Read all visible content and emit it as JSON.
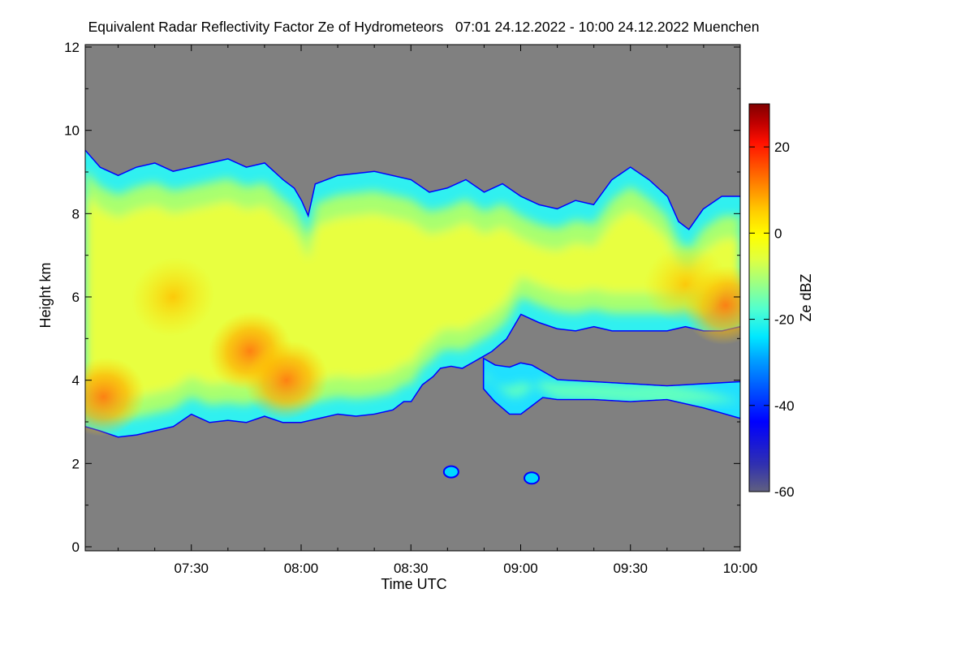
{
  "chart_data": {
    "type": "heatmap",
    "title": "Equivalent Radar Reflectivity Factor Ze of Hydrometeors   07:01 24.12.2022 - 10:00 24.12.2022 Muenchen",
    "xlabel": "Time UTC",
    "ylabel": "Height km",
    "x_range": [
      "07:01",
      "10:00"
    ],
    "y_range": [
      0,
      12
    ],
    "x_ticks": [
      {
        "label": "07:30",
        "minutes": 450
      },
      {
        "label": "08:00",
        "minutes": 480
      },
      {
        "label": "08:30",
        "minutes": 510
      },
      {
        "label": "09:00",
        "minutes": 540
      },
      {
        "label": "09:30",
        "minutes": 570
      },
      {
        "label": "10:00",
        "minutes": 600
      }
    ],
    "x_min_minutes": 421,
    "x_max_minutes": 600,
    "y_ticks": [
      0,
      2,
      4,
      6,
      8,
      10,
      12
    ],
    "colorbar": {
      "label": "Ze dBZ",
      "range": [
        -60,
        30
      ],
      "ticks": [
        20,
        0,
        -20,
        -40,
        -60
      ]
    },
    "no_data_color": "#808080",
    "colormap": [
      "#606080",
      "#3030b0",
      "#0000ff",
      "#0050ff",
      "#00a0ff",
      "#00e8ff",
      "#50ffd0",
      "#a0ff80",
      "#e0ff40",
      "#ffff00",
      "#ffd000",
      "#ff9000",
      "#ff5000",
      "#ff1000",
      "#c00000",
      "#800000"
    ],
    "upper_layer": {
      "top_km": [
        [
          421,
          9.5
        ],
        [
          425,
          9.1
        ],
        [
          430,
          8.9
        ],
        [
          435,
          9.1
        ],
        [
          440,
          9.2
        ],
        [
          445,
          9.0
        ],
        [
          450,
          9.1
        ],
        [
          455,
          9.2
        ],
        [
          460,
          9.3
        ],
        [
          465,
          9.1
        ],
        [
          470,
          9.2
        ],
        [
          475,
          8.8
        ],
        [
          478,
          8.6
        ],
        [
          480,
          8.3
        ],
        [
          482,
          7.9
        ],
        [
          484,
          8.7
        ],
        [
          490,
          8.9
        ],
        [
          500,
          9.0
        ],
        [
          510,
          8.8
        ],
        [
          515,
          8.5
        ],
        [
          520,
          8.6
        ],
        [
          525,
          8.8
        ],
        [
          530,
          8.5
        ],
        [
          535,
          8.7
        ],
        [
          540,
          8.4
        ],
        [
          545,
          8.2
        ],
        [
          550,
          8.1
        ],
        [
          555,
          8.3
        ],
        [
          560,
          8.2
        ],
        [
          565,
          8.8
        ],
        [
          570,
          9.1
        ],
        [
          575,
          8.8
        ],
        [
          580,
          8.4
        ],
        [
          583,
          7.8
        ],
        [
          586,
          7.6
        ],
        [
          590,
          8.1
        ],
        [
          595,
          8.4
        ],
        [
          600,
          8.4
        ]
      ],
      "base_km": [
        [
          421,
          2.9
        ],
        [
          425,
          2.8
        ],
        [
          430,
          2.65
        ],
        [
          435,
          2.7
        ],
        [
          440,
          2.8
        ],
        [
          445,
          2.9
        ],
        [
          450,
          3.2
        ],
        [
          455,
          3.0
        ],
        [
          460,
          3.05
        ],
        [
          465,
          3.0
        ],
        [
          470,
          3.15
        ],
        [
          475,
          3.0
        ],
        [
          480,
          3.0
        ],
        [
          485,
          3.1
        ],
        [
          490,
          3.2
        ],
        [
          495,
          3.15
        ],
        [
          500,
          3.2
        ],
        [
          505,
          3.3
        ],
        [
          508,
          3.5
        ],
        [
          510,
          3.5
        ],
        [
          513,
          3.9
        ],
        [
          516,
          4.1
        ],
        [
          518,
          4.3
        ],
        [
          521,
          4.35
        ],
        [
          524,
          4.3
        ],
        [
          527,
          4.45
        ],
        [
          530,
          4.6
        ],
        [
          532,
          4.7
        ],
        [
          536,
          5.0
        ],
        [
          538,
          5.3
        ],
        [
          540,
          5.6
        ],
        [
          545,
          5.4
        ],
        [
          550,
          5.25
        ],
        [
          555,
          5.2
        ],
        [
          560,
          5.3
        ],
        [
          565,
          5.2
        ],
        [
          570,
          5.2
        ],
        [
          575,
          5.2
        ],
        [
          580,
          5.2
        ],
        [
          585,
          5.3
        ],
        [
          590,
          5.2
        ],
        [
          595,
          5.2
        ],
        [
          600,
          5.3
        ]
      ]
    },
    "lower_layer": {
      "top_km": [
        [
          530,
          4.5
        ],
        [
          533,
          4.35
        ],
        [
          537,
          4.3
        ],
        [
          540,
          4.4
        ],
        [
          543,
          4.35
        ],
        [
          546,
          4.2
        ],
        [
          550,
          4.0
        ],
        [
          560,
          3.95
        ],
        [
          570,
          3.9
        ],
        [
          580,
          3.85
        ],
        [
          590,
          3.9
        ],
        [
          600,
          3.95
        ]
      ],
      "base_km": [
        [
          530,
          3.8
        ],
        [
          533,
          3.5
        ],
        [
          537,
          3.2
        ],
        [
          540,
          3.2
        ],
        [
          543,
          3.4
        ],
        [
          546,
          3.6
        ],
        [
          550,
          3.55
        ],
        [
          560,
          3.55
        ],
        [
          570,
          3.5
        ],
        [
          580,
          3.55
        ],
        [
          590,
          3.35
        ],
        [
          600,
          3.1
        ]
      ]
    },
    "reflectivity_maxima": [
      {
        "minutes": 426,
        "height_km": 3.6,
        "dbz": 8
      },
      {
        "minutes": 466,
        "height_km": 4.7,
        "dbz": 4
      },
      {
        "minutes": 476,
        "height_km": 4.0,
        "dbz": 2
      },
      {
        "minutes": 445,
        "height_km": 6.0,
        "dbz": -2
      },
      {
        "minutes": 596,
        "height_km": 5.8,
        "dbz": 4
      },
      {
        "minutes": 585,
        "height_km": 6.3,
        "dbz": -2
      }
    ],
    "isolated_echoes": [
      {
        "minutes": 521,
        "height_km": 1.8
      },
      {
        "minutes": 543,
        "height_km": 1.65
      }
    ],
    "grid": false
  }
}
